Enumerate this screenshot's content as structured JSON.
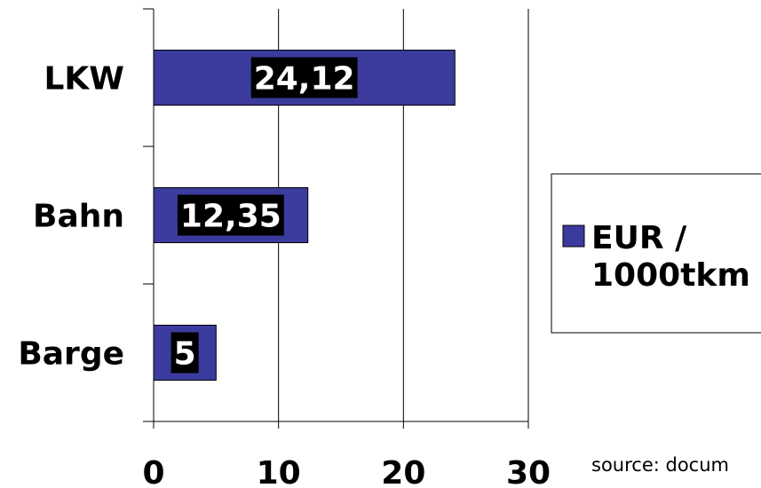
{
  "chart_data": {
    "type": "bar",
    "orientation": "horizontal",
    "categories": [
      "LKW",
      "Bahn",
      "Barge"
    ],
    "series": [
      {
        "name": "EUR / 1000tkm",
        "values": [
          24.12,
          12.35,
          5
        ]
      }
    ],
    "data_labels": [
      "24,12",
      "12,35",
      "5"
    ],
    "xlim": [
      0,
      30
    ],
    "xticks": [
      0,
      10,
      20,
      30
    ],
    "xtick_labels": [
      "0",
      "10",
      "20",
      "30"
    ],
    "grid": "vertical",
    "legend_position": "right",
    "legend_lines": [
      "EUR /",
      "1000tkm"
    ],
    "bar_color": "#3b3b9e",
    "label_background": "#000000",
    "label_color": "#ffffff",
    "source": "source: docum"
  }
}
